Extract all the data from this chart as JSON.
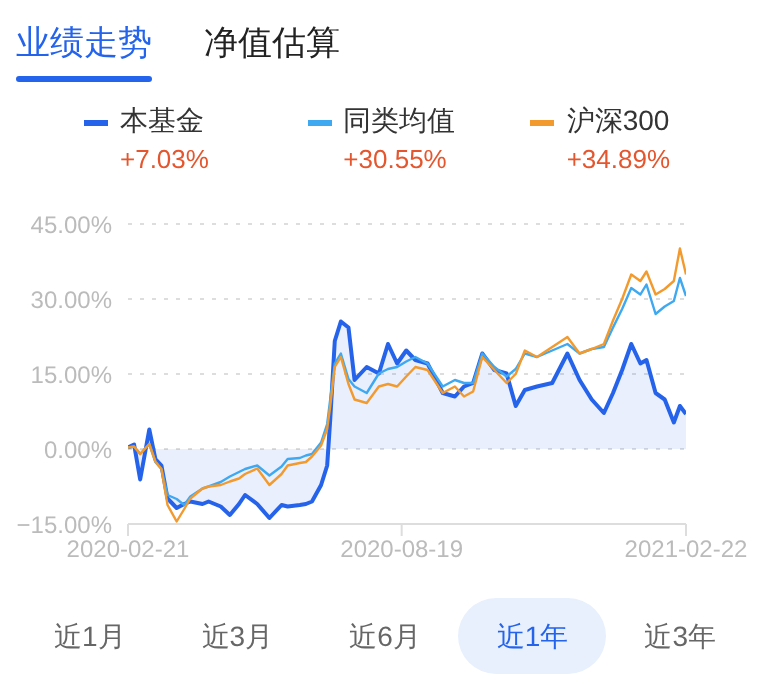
{
  "chart_data": {
    "type": "line",
    "annotations": [
      "+7.03%",
      "+30.55%",
      "+34.89%",
      "业绩走势",
      "净值估算",
      "近1月",
      "近3月",
      "近6月",
      "近1年",
      "近3年"
    ],
    "x": [
      "2020-02-21",
      "2020-02-25",
      "2020-02-29",
      "2020-03-06",
      "2020-03-10",
      "2020-03-14",
      "2020-03-18",
      "2020-03-24",
      "2020-03-29",
      "2020-04-02",
      "2020-04-10",
      "2020-04-14",
      "2020-04-22",
      "2020-04-28",
      "2020-05-04",
      "2020-05-08",
      "2020-05-16",
      "2020-05-24",
      "2020-06-01",
      "2020-06-05",
      "2020-06-13",
      "2020-06-17",
      "2020-06-21",
      "2020-06-27",
      "2020-07-01",
      "2020-07-03",
      "2020-07-06",
      "2020-07-10",
      "2020-07-15",
      "2020-07-19",
      "2020-07-27",
      "2020-08-04",
      "2020-08-10",
      "2020-08-16",
      "2020-08-22",
      "2020-08-28",
      "2020-09-05",
      "2020-09-15",
      "2020-09-23",
      "2020-09-29",
      "2020-10-05",
      "2020-10-11",
      "2020-10-19",
      "2020-10-27",
      "2020-11-02",
      "2020-11-08",
      "2020-11-16",
      "2020-11-26",
      "2020-12-06",
      "2020-12-14",
      "2020-12-22",
      "2020-12-30",
      "2021-01-05",
      "2021-01-11",
      "2021-01-17",
      "2021-01-23",
      "2021-01-27",
      "2021-02-02",
      "2021-02-08",
      "2021-02-14",
      "2021-02-18",
      "2021-02-22"
    ],
    "series": [
      {
        "name": "本基金",
        "type": "area",
        "color": "#2563eb",
        "values": [
          0.3,
          0.9,
          -6.1,
          3.9,
          -2,
          -3.3,
          -9.9,
          -11.8,
          -11,
          -10.5,
          -11,
          -10.5,
          -11.5,
          -13.2,
          -11,
          -9.2,
          -11,
          -13.8,
          -11.2,
          -11.5,
          -11.2,
          -11,
          -10.5,
          -7.2,
          -3.3,
          5.9,
          21.6,
          25.5,
          24.3,
          13.8,
          16.4,
          15.1,
          21,
          17.1,
          19.7,
          17.8,
          17.1,
          11.2,
          10.5,
          12.5,
          13.2,
          19.1,
          15.8,
          15.1,
          8.6,
          11.8,
          12.5,
          13.2,
          19.1,
          13.8,
          9.9,
          7.2,
          11.2,
          15.8,
          21,
          17.1,
          17.8,
          11.2,
          9.9,
          5.3,
          8.6,
          7.0
        ]
      },
      {
        "name": "同类均值",
        "color": "#3ea8f0",
        "values": [
          0.3,
          0.5,
          -1,
          1,
          -2.6,
          -4,
          -9.2,
          -10,
          -11.2,
          -9.5,
          -7.9,
          -7.5,
          -6.6,
          -5.5,
          -4.6,
          -4,
          -3.3,
          -5.3,
          -3.5,
          -2,
          -1.8,
          -1.3,
          -1,
          1.3,
          5,
          9.9,
          17.1,
          19.1,
          14,
          12.5,
          11.2,
          15.1,
          16,
          16.4,
          17.5,
          18.4,
          17.1,
          12.5,
          13.8,
          13.2,
          13.2,
          19.1,
          16.4,
          14.5,
          16,
          19.1,
          18.4,
          19.7,
          21,
          19.1,
          20,
          20.4,
          24.3,
          28,
          32.2,
          30.9,
          32.9,
          27,
          28.5,
          29.6,
          34.2,
          30.6
        ]
      },
      {
        "name": "沪深300",
        "color": "#f29a2e",
        "values": [
          0.3,
          0.5,
          -1,
          1,
          -2.5,
          -4,
          -11.2,
          -14.5,
          -12,
          -9.9,
          -7.9,
          -7.5,
          -7.2,
          -6.5,
          -5.9,
          -5,
          -3.9,
          -7.2,
          -5,
          -3.3,
          -2.8,
          -2.6,
          -1.5,
          0.7,
          4,
          8.6,
          16.4,
          18.4,
          13,
          9.9,
          9.2,
          12.5,
          13,
          12.5,
          14.5,
          16.4,
          15.8,
          11.2,
          12.5,
          10.5,
          11.5,
          18.4,
          15.8,
          13.2,
          15,
          19.7,
          18.4,
          20.4,
          22.4,
          19.1,
          20,
          21,
          25.7,
          30,
          34.9,
          33.6,
          35.5,
          30.9,
          32,
          33.6,
          40.1,
          34.9
        ]
      }
    ],
    "xlim": [
      "2020-02-21",
      "2021-02-22"
    ],
    "xticks": [
      "2020-02-21",
      "2020-08-19",
      "2021-02-22"
    ],
    "ylim": [
      -15,
      45
    ],
    "yticks": [
      {
        "value": -15,
        "label": "−15.00%"
      },
      {
        "value": 0,
        "label": "0.00%"
      },
      {
        "value": 15,
        "label": "15.00%"
      },
      {
        "value": 30,
        "label": "30.00%"
      },
      {
        "value": 45,
        "label": "45.00%"
      }
    ],
    "grid": "y",
    "legend": "top",
    "marker": "none",
    "line_style": "solid"
  }
}
